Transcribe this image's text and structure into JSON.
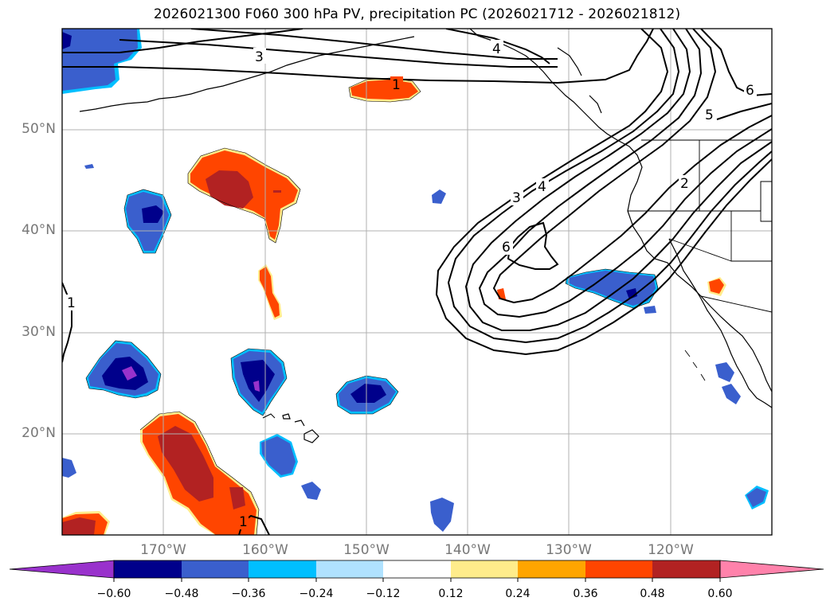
{
  "title": "2026021300 F060 300 hPa PV, precipitation PC (2026021712 - 2026021812)",
  "lat_labels": [
    "50°N",
    "40°N",
    "30°N",
    "20°N"
  ],
  "lon_labels": [
    "170°W",
    "160°W",
    "150°W",
    "140°W",
    "130°W",
    "120°W"
  ],
  "contour_labels": [
    "3",
    "4",
    "1",
    "6",
    "5",
    "3",
    "4",
    "6",
    "2",
    "1",
    "1"
  ],
  "colorbar": {
    "ticks": [
      "−0.60",
      "−0.48",
      "−0.36",
      "−0.24",
      "−0.12",
      "0.12",
      "0.24",
      "0.36",
      "0.48",
      "0.60"
    ],
    "colors": [
      "#9932cc",
      "#00008b",
      "#3a5fcd",
      "#00bfff",
      "#b0e2ff",
      "#ffffff",
      "#ffec8b",
      "#ffa500",
      "#ff4500",
      "#b22222",
      "#ff82ab"
    ]
  },
  "palette": {
    "purple": "#9932cc",
    "navy": "#00008b",
    "blue": "#3a5fcd",
    "sky": "#00bfff",
    "pale_blue": "#b0e2ff",
    "pale_yellow": "#ffec8b",
    "orange": "#ffa500",
    "red_orange": "#ff4500",
    "dark_red": "#b22222",
    "pink": "#ff82ab"
  }
}
